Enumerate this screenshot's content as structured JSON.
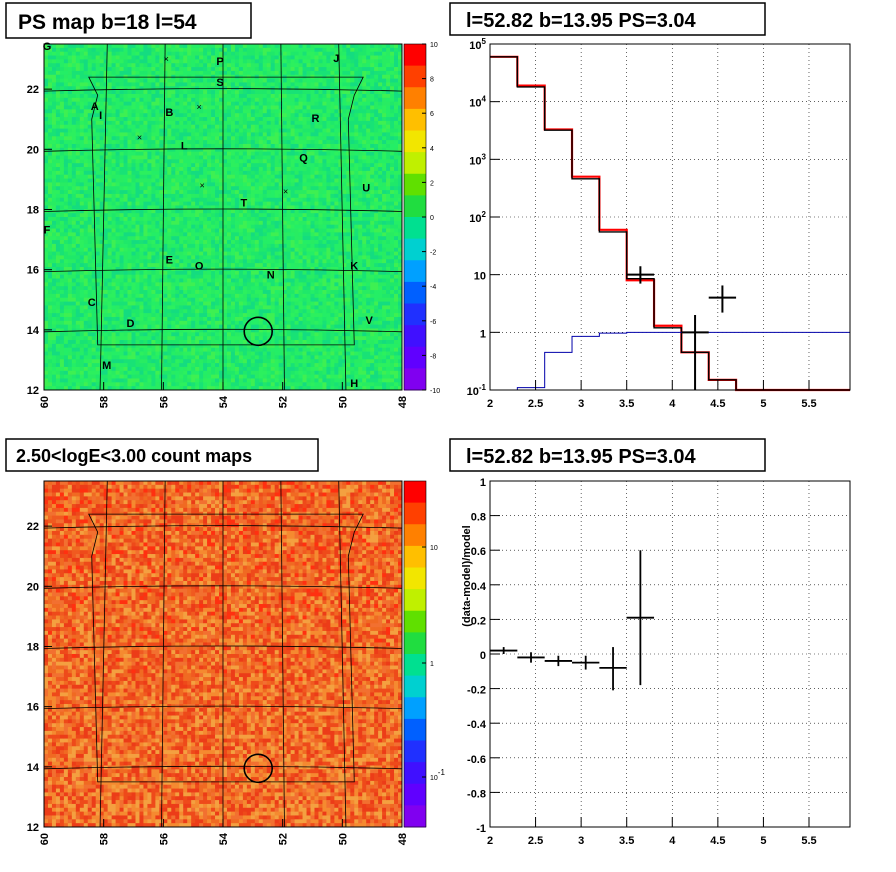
{
  "panels": {
    "top_left_title": "PS map b=18 l=54",
    "top_right_title": "l=52.82 b=13.95 PS=3.04",
    "bottom_left_title": "2.50<logE<3.00 count maps",
    "bottom_right_title": "l=52.82 b=13.95 PS=3.04"
  },
  "chart_data": [
    {
      "type": "heatmap",
      "name": "ps-map",
      "title": "PS map b=18 l=54",
      "xlim": [
        60,
        48
      ],
      "ylim": [
        12,
        23.5
      ],
      "x_ticks": [
        "60",
        "58",
        "56",
        "54",
        "52",
        "50",
        "48"
      ],
      "y_ticks": [
        "12",
        "14",
        "16",
        "18",
        "20",
        "22"
      ],
      "colorbar": {
        "min": -10,
        "max": 10,
        "ticks": [
          "10",
          "8",
          "6",
          "4",
          "2",
          "0",
          "-2",
          "-4",
          "-6",
          "-8",
          "-10"
        ]
      },
      "dominant_color": "#22ee66",
      "candidate_circle": {
        "l": 52.82,
        "b": 13.95
      },
      "sources": [
        {
          "label": "G",
          "l": 59.9,
          "b": 23.3
        },
        {
          "label": "P",
          "l": 54.1,
          "b": 22.8
        },
        {
          "label": "J",
          "l": 50.2,
          "b": 22.9
        },
        {
          "label": "S",
          "l": 54.1,
          "b": 22.1
        },
        {
          "label": "A",
          "l": 58.3,
          "b": 21.3
        },
        {
          "label": "I",
          "l": 58.1,
          "b": 21.0
        },
        {
          "label": "B",
          "l": 55.8,
          "b": 21.1
        },
        {
          "label": "R",
          "l": 50.9,
          "b": 20.9
        },
        {
          "label": "L",
          "l": 55.3,
          "b": 20.0
        },
        {
          "label": "Q",
          "l": 51.3,
          "b": 19.6
        },
        {
          "label": "U",
          "l": 49.2,
          "b": 18.6
        },
        {
          "label": "T",
          "l": 53.3,
          "b": 18.1
        },
        {
          "label": "F",
          "l": 59.9,
          "b": 17.2
        },
        {
          "label": "E",
          "l": 55.8,
          "b": 16.2
        },
        {
          "label": "O",
          "l": 54.8,
          "b": 16.0
        },
        {
          "label": "K",
          "l": 49.6,
          "b": 16.0
        },
        {
          "label": "N",
          "l": 52.4,
          "b": 15.7
        },
        {
          "label": "C",
          "l": 58.4,
          "b": 14.8
        },
        {
          "label": "D",
          "l": 57.1,
          "b": 14.1
        },
        {
          "label": "V",
          "l": 49.1,
          "b": 14.2
        },
        {
          "label": "M",
          "l": 57.9,
          "b": 12.7
        },
        {
          "label": "H",
          "l": 49.6,
          "b": 12.1
        }
      ],
      "crosses": [
        {
          "l": 55.9,
          "b": 23.0
        },
        {
          "l": 54.8,
          "b": 21.4
        },
        {
          "l": 56.8,
          "b": 20.4
        },
        {
          "l": 54.7,
          "b": 18.8
        },
        {
          "l": 51.9,
          "b": 18.6
        }
      ]
    },
    {
      "type": "line",
      "name": "spectrum",
      "title": "l=52.82 b=13.95 PS=3.04",
      "xlim": [
        2,
        5.95
      ],
      "ylim": [
        0.1,
        100000
      ],
      "log_y": true,
      "x_ticks": [
        "2",
        "2.5",
        "3",
        "3.5",
        "4",
        "4.5",
        "5",
        "5.5"
      ],
      "y_ticks": [
        "10^-1",
        "1",
        "10",
        "10^2",
        "10^3",
        "10^4",
        "10^5"
      ],
      "grid": true,
      "bin_edges": [
        2.0,
        2.3,
        2.6,
        2.9,
        3.2,
        3.5,
        3.8,
        4.1,
        4.4,
        4.7,
        5.0,
        5.3,
        5.6,
        5.95
      ],
      "series": [
        {
          "color": "#ff0000",
          "step": true,
          "values": [
            60000,
            19000,
            3300,
            500,
            60,
            8,
            1.3,
            0.45,
            0.15,
            0.1,
            0.1,
            0.1,
            0.1
          ]
        },
        {
          "color": "#000000",
          "step": true,
          "values": [
            60000,
            18000,
            3200,
            460,
            55,
            8.5,
            1.2,
            0.45,
            0.15,
            0.1,
            0.1,
            0.1,
            0.1
          ]
        },
        {
          "color": "#0000aa",
          "step": true,
          "values": [
            0.1,
            0.11,
            0.45,
            0.85,
            0.97,
            1.0,
            1.0,
            1.0,
            1.0,
            1.0,
            1.0,
            1.0,
            1.0
          ]
        }
      ],
      "points": [
        {
          "x": 3.65,
          "xerr": 0.15,
          "y": 10,
          "ylo": 7,
          "yhi": 14
        },
        {
          "x": 4.25,
          "xerr": 0.15,
          "y": 1.0,
          "ylo": 0.1,
          "yhi": 2.0
        },
        {
          "x": 4.55,
          "xerr": 0.15,
          "y": 4.0,
          "ylo": 2.2,
          "yhi": 6.5
        }
      ]
    },
    {
      "type": "heatmap",
      "name": "count-map",
      "title": "2.50<logE<3.00 count maps",
      "xlim": [
        60,
        48
      ],
      "ylim": [
        12,
        23.5
      ],
      "x_ticks": [
        "60",
        "58",
        "56",
        "54",
        "52",
        "50",
        "48"
      ],
      "y_ticks": [
        "12",
        "14",
        "16",
        "18",
        "20",
        "22"
      ],
      "colorbar": {
        "log": true,
        "ticks": [
          "10",
          "1",
          "10^-1"
        ]
      },
      "dominant_color": "#f06a22",
      "candidate_circle": {
        "l": 52.82,
        "b": 13.95
      }
    },
    {
      "type": "scatter",
      "name": "residuals",
      "title": "l=52.82 b=13.95 PS=3.04",
      "ylabel": "(data-model)/model",
      "xlim": [
        2,
        5.95
      ],
      "ylim": [
        -1,
        1
      ],
      "x_ticks": [
        "2",
        "2.5",
        "3",
        "3.5",
        "4",
        "4.5",
        "5",
        "5.5"
      ],
      "y_ticks": [
        "1",
        "0.8",
        "0.6",
        "0.4",
        "0.2",
        "0",
        "-0.2",
        "-0.4",
        "-0.6",
        "-0.8",
        "-1"
      ],
      "grid": true,
      "points": [
        {
          "x": 2.15,
          "xerr": 0.15,
          "y": 0.02,
          "ylo": 0.0,
          "yhi": 0.04
        },
        {
          "x": 2.45,
          "xerr": 0.15,
          "y": -0.02,
          "ylo": -0.05,
          "yhi": 0.01
        },
        {
          "x": 2.75,
          "xerr": 0.15,
          "y": -0.04,
          "ylo": -0.07,
          "yhi": -0.01
        },
        {
          "x": 3.05,
          "xerr": 0.15,
          "y": -0.05,
          "ylo": -0.09,
          "yhi": -0.01
        },
        {
          "x": 3.35,
          "xerr": 0.15,
          "y": -0.08,
          "ylo": -0.21,
          "yhi": 0.04
        },
        {
          "x": 3.65,
          "xerr": 0.15,
          "y": 0.21,
          "ylo": -0.18,
          "yhi": 0.6
        }
      ]
    }
  ]
}
